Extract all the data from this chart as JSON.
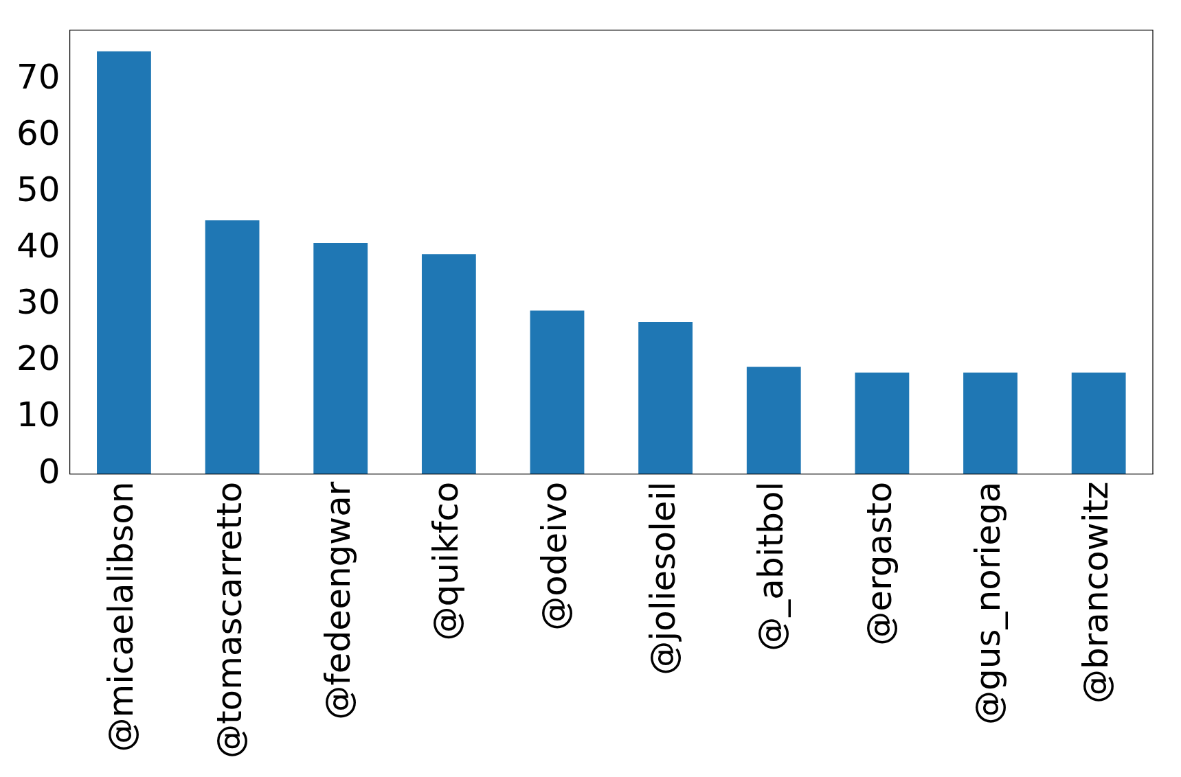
{
  "chart_data": {
    "type": "bar",
    "categories": [
      "@micaelalibson",
      "@tomascarretto",
      "@fedeengwar",
      "@quikfco",
      "@odeivo",
      "@joliesoleil",
      "@_abitbol",
      "@ergasto",
      "@gus_noriega",
      "@brancowitz"
    ],
    "values": [
      75,
      45,
      41,
      39,
      29,
      27,
      19,
      18,
      18,
      18
    ],
    "color": "#1f77b4",
    "ylim": [
      0,
      78.75
    ],
    "yticks": [
      0,
      10,
      20,
      30,
      40,
      50,
      60,
      70
    ],
    "grid": false,
    "legend": false
  }
}
